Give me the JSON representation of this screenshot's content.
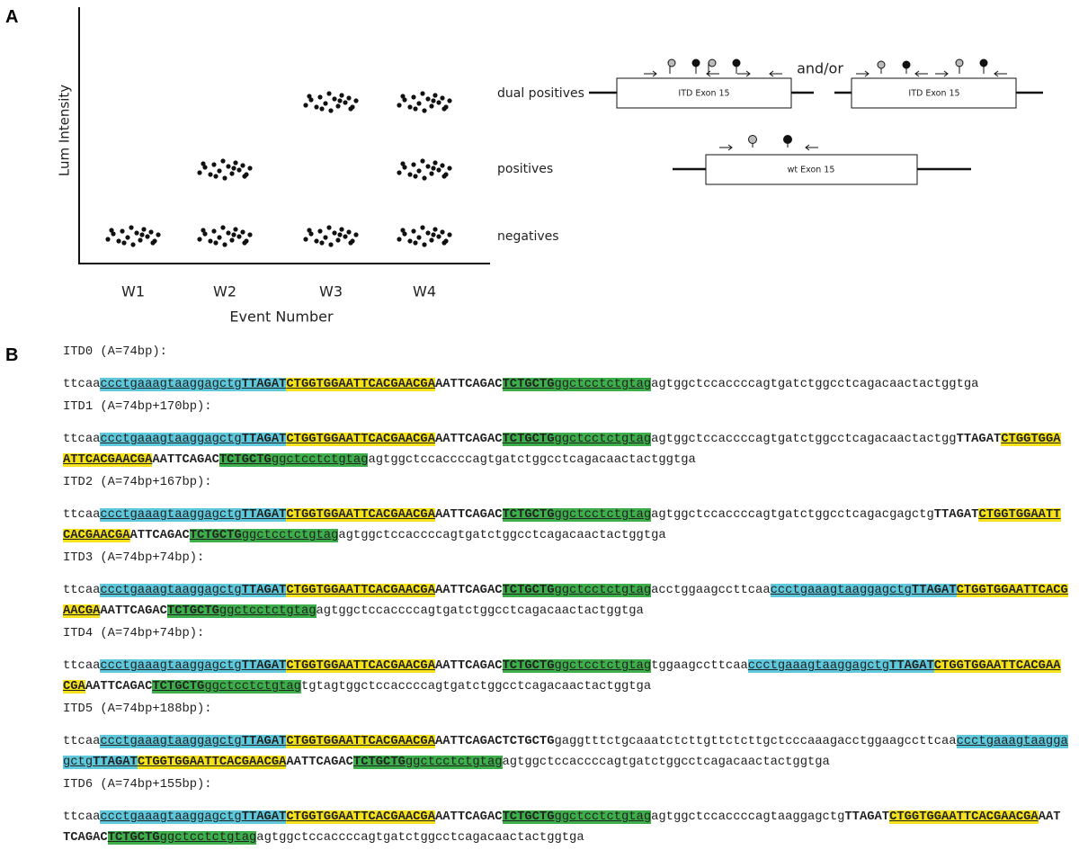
{
  "panel_a": {
    "label": "A",
    "y_axis_label": "Lum Intensity",
    "x_axis_label": "Event Number",
    "categories": [
      "W1",
      "W2",
      "W3",
      "W4"
    ],
    "cluster_labels": [
      "dual positives",
      "positives",
      "negatives"
    ],
    "diagram": {
      "itd_exon_left": "ITD Exon 15",
      "connector": "and/or",
      "itd_exon_right": "ITD Exon 15",
      "wt_exon": "wt Exon 15"
    }
  },
  "panel_b": {
    "label": "B",
    "itds": [
      {
        "header": "ITD0 (A=74bp):",
        "lines": [
          [
            {
              "text": "ttcaa"
            },
            {
              "text": "ccctgaaagtaaggagctg",
              "bg": "#5ec9dd"
            },
            {
              "text": "TTAGAT",
              "bg": "#5ec9dd"
            },
            {
              "text": "CTGGTGGAATTCACGAACGA",
              "bg": "#f6e21b"
            },
            {
              "text": "AATTCAGAC"
            },
            {
              "text": "TCTGCTGggctcctctgtag",
              "bg": "#3daf4a"
            },
            {
              "text": "agtggctccaccccagtgatctggcctcagacaactactggtga"
            }
          ]
        ]
      },
      {
        "header": "ITD1 (A=74bp+170bp):",
        "lines": [
          [
            {
              "text": "ttcaa"
            },
            {
              "text": "ccctgaaagtaaggagctg",
              "bg": "#5ec9dd"
            },
            {
              "text": "TTAGAT",
              "bg": "#5ec9dd"
            },
            {
              "text": "CTGGTGGAATTCACGAACGA",
              "bg": "#f6e21b"
            },
            {
              "text": "AATTCAGAC"
            },
            {
              "text": "TCTGCTGggctcctctgtag",
              "bg": "#3daf4a"
            },
            {
              "text": "agtggctccaccccagtgatctggcctcagacaactactggTTAGAT"
            },
            {
              "text": "CTGGTGGA",
              "bg": "#f6e21b"
            }
          ],
          [
            {
              "text": "ATTCACGAACGA",
              "bg": "#f6e21b"
            },
            {
              "text": "AATTCAGAC"
            },
            {
              "text": "TCTGCTGggctcctctgtag",
              "bg": "#3daf4a"
            },
            {
              "text": "agtggctccaccccagtgatctggcctcagacaactactggtga"
            }
          ]
        ]
      },
      {
        "header": "ITD2 (A=74bp+167bp):",
        "lines": [
          [
            {
              "text": "ttcaa"
            },
            {
              "text": "ccctgaaagtaaggagctg",
              "bg": "#5ec9dd"
            },
            {
              "text": "TTAGAT",
              "bg": "#5ec9dd"
            },
            {
              "text": "CTGGTGGAATTCACGAACGA",
              "bg": "#f6e21b"
            },
            {
              "text": "AATTCAGAC"
            },
            {
              "text": "TCTGCTGggctcctctgtag",
              "bg": "#3daf4a"
            },
            {
              "text": "agtggctccaccccagtgatctggcctcagacgagctgTTAGAT"
            },
            {
              "text": "CTGGTGGAATT",
              "bg": "#f6e21b"
            }
          ],
          [
            {
              "text": "CACGAACGA",
              "bg": "#f6e21b"
            },
            {
              "text": "ATTCAGAC"
            },
            {
              "text": "TCTGCTGggctcctctgtag",
              "bg": "#3daf4a"
            },
            {
              "text": "agtggctccaccccagtgatctggcctcagacaactactggtga"
            }
          ]
        ]
      },
      {
        "header": "ITD3 (A=74bp+74bp):",
        "lines": [
          [
            {
              "text": "ttcaa"
            },
            {
              "text": "ccctgaaagtaaggagctg",
              "bg": "#5ec9dd"
            },
            {
              "text": "TTAGAT",
              "bg": "#5ec9dd"
            },
            {
              "text": "CTGGTGGAATTCACGAACGA",
              "bg": "#f6e21b"
            },
            {
              "text": "AATTCAGAC"
            },
            {
              "text": "TCTGCTGggctcctctgtag",
              "bg": "#3daf4a"
            },
            {
              "text": "acctggaagccttcaa"
            },
            {
              "text": "ccctgaaagtaaggagctg",
              "bg": "#5ec9dd"
            },
            {
              "text": "TTAGAT",
              "bg": "#5ec9dd"
            },
            {
              "text": "CTGGTGGAATTCACG",
              "bg": "#f6e21b"
            }
          ],
          [
            {
              "text": "AACGA",
              "bg": "#f6e21b"
            },
            {
              "text": "AATTCAGAC"
            },
            {
              "text": "TCTGCTGggctcctctgtag",
              "bg": "#3daf4a"
            },
            {
              "text": "agtggctccaccccagtgatctggcctcagacaactactggtga"
            }
          ]
        ]
      },
      {
        "header": "ITD4 (A=74bp+74bp):",
        "lines": [
          [
            {
              "text": "ttcaa"
            },
            {
              "text": "ccctgaaagtaaggagctg",
              "bg": "#5ec9dd"
            },
            {
              "text": "TTAGAT",
              "bg": "#5ec9dd"
            },
            {
              "text": "CTGGTGGAATTCACGAACGA",
              "bg": "#f6e21b"
            },
            {
              "text": "AATTCAGAC"
            },
            {
              "text": "TCTGCTGggctcctctgtag",
              "bg": "#3daf4a"
            },
            {
              "text": "tggaagccttcaa"
            },
            {
              "text": "ccctgaaagtaaggagctg",
              "bg": "#5ec9dd"
            },
            {
              "text": "TTAGAT",
              "bg": "#5ec9dd"
            },
            {
              "text": "CTGGTGGAATTCACGAA",
              "bg": "#f6e21b"
            }
          ],
          [
            {
              "text": "CGA",
              "bg": "#f6e21b"
            },
            {
              "text": "AATTCAGAC"
            },
            {
              "text": "TCTGCTGggctcctctgtag",
              "bg": "#3daf4a"
            },
            {
              "text": "tgtagtggctccaccccagtgatctggcctcagacaactactggtga"
            }
          ]
        ]
      },
      {
        "header": "ITD5 (A=74bp+188bp):",
        "lines": [
          [
            {
              "text": "ttcaa"
            },
            {
              "text": "ccctgaaagtaaggagctg",
              "bg": "#5ec9dd"
            },
            {
              "text": "TTAGAT",
              "bg": "#5ec9dd"
            },
            {
              "text": "CTGGTGGAATTCACGAACGA",
              "bg": "#f6e21b"
            },
            {
              "text": "AATTCAGACTCTGCTGgaggtttctgcaaatctcttgttctcttgctcccaaagacctggaagccttcaa"
            },
            {
              "text": "ccctgaaagtaagga",
              "bg": "#5ec9dd"
            }
          ],
          [
            {
              "text": "gctgTTAGAT",
              "bg": "#5ec9dd"
            },
            {
              "text": "CTGGTGGAATTCACGAACGA",
              "bg": "#f6e21b"
            },
            {
              "text": "AATTCAGAC"
            },
            {
              "text": "TCTGCTGggctcctctgtag",
              "bg": "#3daf4a"
            },
            {
              "text": "agtggctccaccccagtgatctggcctcagacaactactggtga"
            }
          ]
        ]
      },
      {
        "header": "ITD6 (A=74bp+155bp):",
        "lines": [
          [
            {
              "text": "ttcaa"
            },
            {
              "text": "ccctgaaagtaaggagctg",
              "bg": "#5ec9dd"
            },
            {
              "text": "TTAGAT",
              "bg": "#5ec9dd"
            },
            {
              "text": "CTGGTGGAATTCACGAACGA",
              "bg": "#f6e21b"
            },
            {
              "text": "AATTCAGAC"
            },
            {
              "text": "TCTGCTGggctcctctgtag",
              "bg": "#3daf4a"
            },
            {
              "text": "agtggctccaccccagtaaggagctgTTAGAT"
            },
            {
              "text": "CTGGTGGAATTCACGAACGA",
              "bg": "#f6e21b"
            },
            {
              "text": "AAT"
            }
          ],
          [
            {
              "text": "TCAGAC"
            },
            {
              "text": "TCTGCTGggctcctctgtag",
              "bg": "#3daf4a"
            },
            {
              "text": "agtggctccaccccagtgatctggcctcagacaactactggtga"
            }
          ]
        ]
      }
    ]
  }
}
